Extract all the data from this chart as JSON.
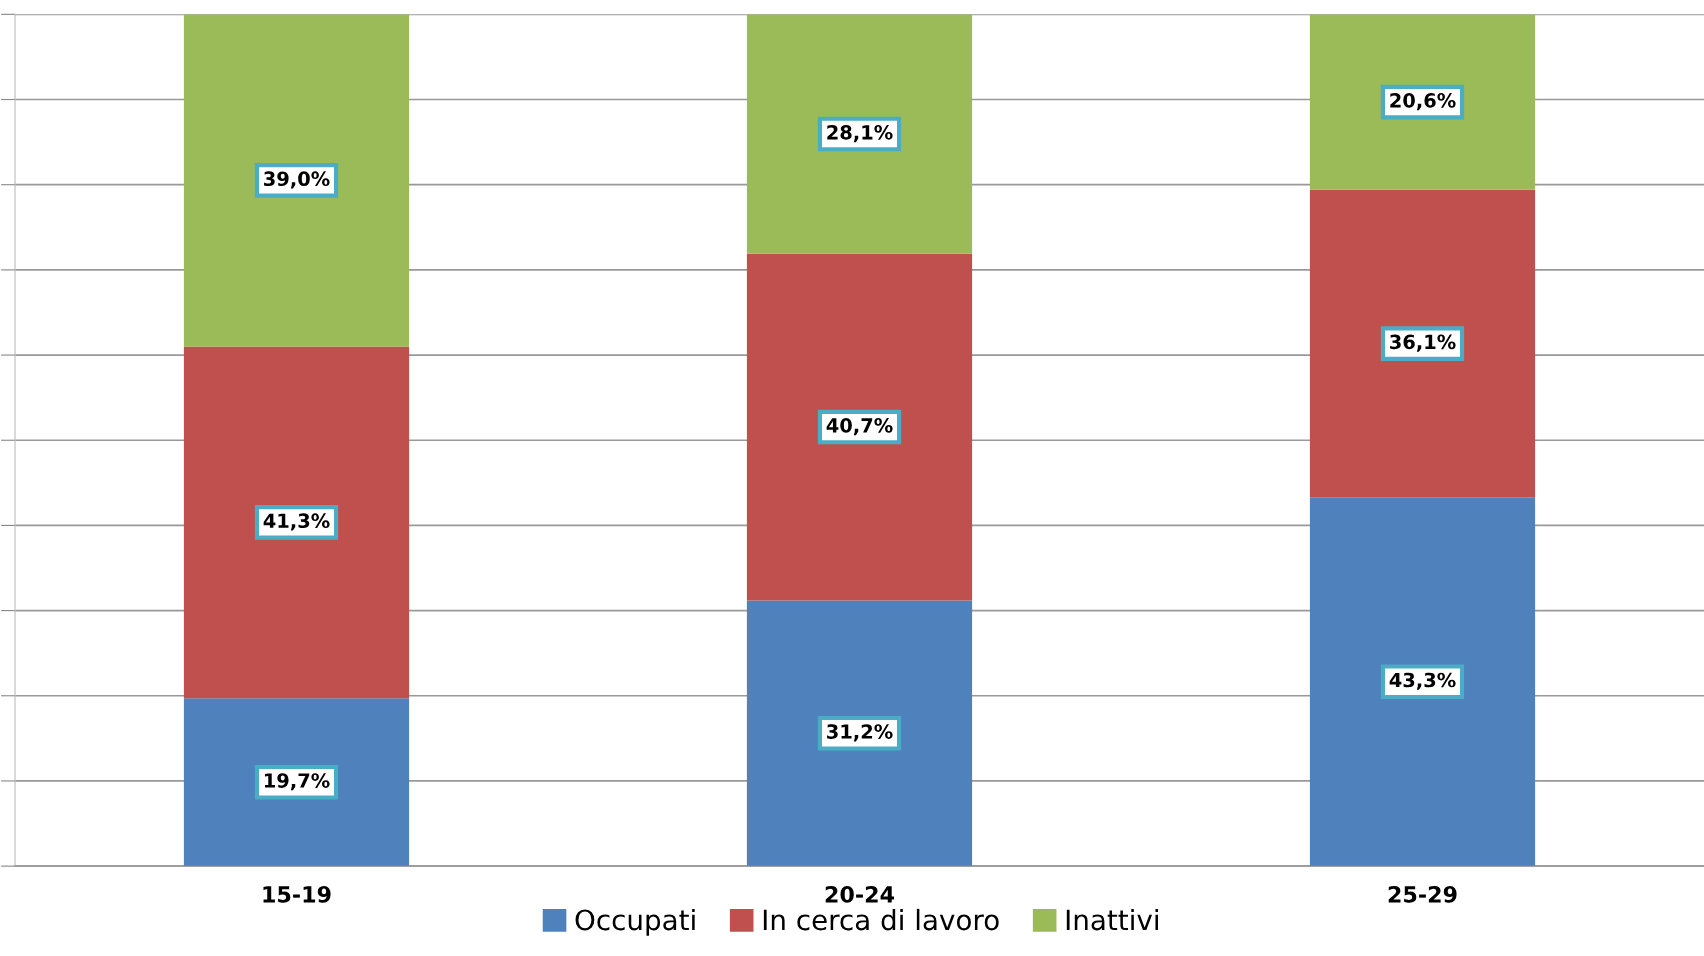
{
  "chart_data": {
    "type": "bar",
    "stacked": true,
    "categories": [
      "15-19",
      "20-24",
      "25-29"
    ],
    "series": [
      {
        "name": "Occupati",
        "color": "#4f81bd",
        "values": [
          19.7,
          31.2,
          43.3
        ],
        "value_labels": [
          "19,7%",
          "31,2%",
          "43,3%"
        ]
      },
      {
        "name": "In cerca di lavoro",
        "color": "#c0504d",
        "values": [
          41.3,
          40.7,
          36.1
        ],
        "value_labels": [
          "41,3%",
          "40,7%",
          "36,1%"
        ]
      },
      {
        "name": "Inattivi",
        "color": "#9bbb59",
        "values": [
          39.0,
          28.1,
          20.6
        ],
        "value_labels": [
          "39,0%",
          "28,1%",
          "20,6%"
        ]
      }
    ],
    "ylim": [
      0,
      100
    ],
    "yticks": [
      {
        "value": 0,
        "label": null
      },
      {
        "value": 10,
        "label": null
      },
      {
        "value": 20,
        "label": null
      },
      {
        "value": 30,
        "label": null
      },
      {
        "value": 40,
        "label": null
      },
      {
        "value": 50,
        "label": null
      },
      {
        "value": 60,
        "label": null
      },
      {
        "value": 70,
        "label": null
      },
      {
        "value": 80,
        "label": null
      },
      {
        "value": 90,
        "label": null
      },
      {
        "value": 100,
        "label": null
      }
    ],
    "tick_labels": "x",
    "grid": "y",
    "legend": "bottom"
  }
}
